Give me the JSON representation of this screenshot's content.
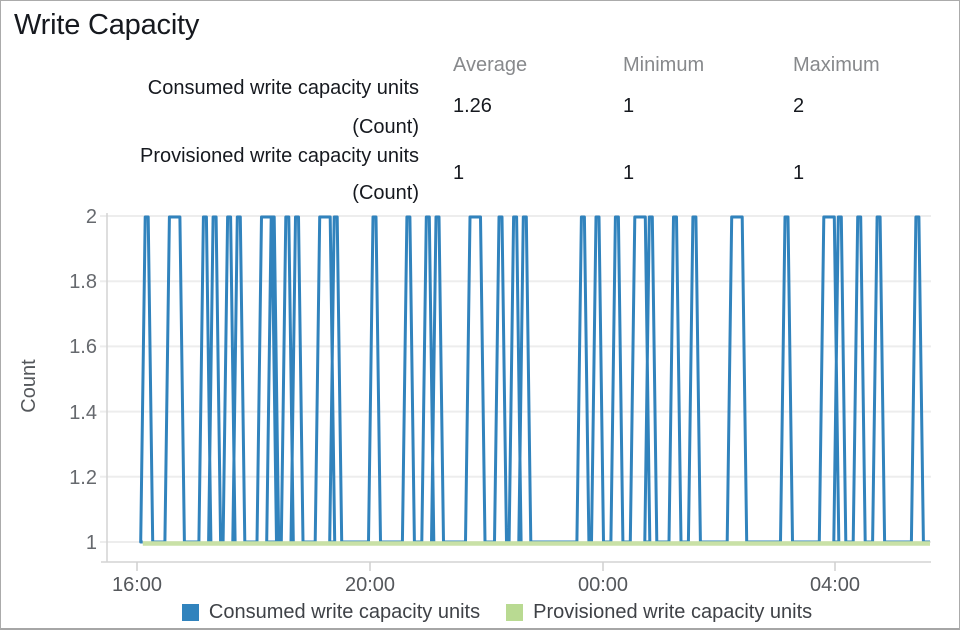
{
  "title": "Write Capacity",
  "stats": {
    "columns": [
      "Average",
      "Minimum",
      "Maximum"
    ],
    "rows": [
      {
        "label_line1": "Consumed write capacity units",
        "label_line2": "(Count)",
        "average": "1.26",
        "minimum": "1",
        "maximum": "2"
      },
      {
        "label_line1": "Provisioned write capacity units",
        "label_line2": "(Count)",
        "average": "1",
        "minimum": "1",
        "maximum": "1"
      }
    ]
  },
  "chart_data": {
    "type": "line",
    "title": "Write Capacity",
    "xlabel": "",
    "ylabel": "Count",
    "ylim": [
      0.94,
      2
    ],
    "grid": true,
    "legend_position": "bottom",
    "y_ticks_top_to_bottom": [
      "2",
      "1.8",
      "1.6",
      "1.4",
      "1.2",
      "1"
    ],
    "x_ticks": [
      "16:00",
      "20:00",
      "00:00",
      "04:00"
    ],
    "x_tick_minutes": [
      30,
      270,
      510,
      750
    ],
    "start_minute": 36,
    "end_minute": 848,
    "series": [
      {
        "name": "Consumed write capacity units",
        "color": "#3183bd",
        "baseline_value": 1,
        "peak_value": 2,
        "spike_minutes": [
          40,
          100,
          110,
          125,
          135,
          170,
          185,
          195,
          235,
          275,
          310,
          330,
          340,
          405,
          420,
          430,
          490,
          505,
          525,
          560,
          585,
          605,
          700,
          755,
          775,
          795,
          835
        ],
        "wide_spike_minutes": [
          65,
          160,
          220,
          375,
          545,
          645,
          740
        ]
      },
      {
        "name": "Provisioned write capacity units",
        "color": "#b9da92",
        "line_color": "#c9e1a6",
        "constant_value": 1
      }
    ]
  },
  "colors": {
    "title_text": "#16191f",
    "header_text": "#87898c",
    "axis_text": "#66696e",
    "gridline": "#ededed",
    "axis_line": "#d3d3d3"
  }
}
